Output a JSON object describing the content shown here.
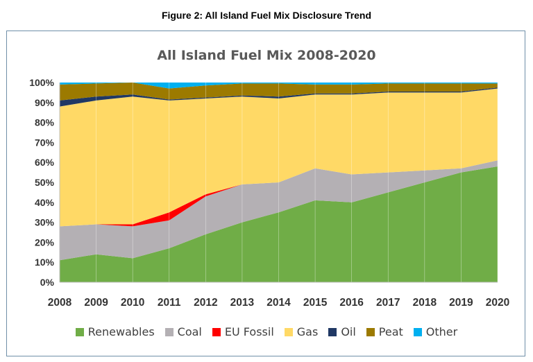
{
  "figure_caption": "Figure 2: All Island Fuel Mix Disclosure Trend",
  "chart_data": {
    "type": "area",
    "stacked": true,
    "title": "All Island Fuel Mix 2008-2020",
    "xlabel": "",
    "ylabel": "",
    "ylim": [
      0,
      100
    ],
    "yticks": [
      "0%",
      "10%",
      "20%",
      "30%",
      "40%",
      "50%",
      "60%",
      "70%",
      "80%",
      "90%",
      "100%"
    ],
    "x": [
      "2008",
      "2009",
      "2010",
      "2011",
      "2012",
      "2013",
      "2014",
      "2015",
      "2016",
      "2017",
      "2018",
      "2019",
      "2020"
    ],
    "legend_position": "bottom",
    "grid": false,
    "series": [
      {
        "name": "Renewables",
        "color": "#70ad47",
        "values": [
          11,
          14,
          12,
          17,
          24,
          30,
          35,
          41,
          40,
          45,
          50,
          55,
          58
        ]
      },
      {
        "name": "Coal",
        "color": "#b4b0b4",
        "values": [
          17,
          15,
          16,
          14,
          19,
          19,
          15,
          16,
          14,
          10,
          6,
          2,
          3
        ]
      },
      {
        "name": "EU Fossil",
        "color": "#ff0000",
        "values": [
          0,
          0,
          1,
          4,
          1,
          0,
          0,
          0,
          0,
          0,
          0,
          0,
          0
        ]
      },
      {
        "name": "Gas",
        "color": "#ffd966",
        "values": [
          60,
          62,
          64,
          56,
          48,
          44,
          42,
          37,
          40,
          40,
          39,
          38,
          36
        ]
      },
      {
        "name": "Oil",
        "color": "#203864",
        "values": [
          3,
          2,
          1,
          0.5,
          0.5,
          0.5,
          1,
          0.5,
          0.5,
          0.5,
          0.5,
          0.5,
          0.5
        ]
      },
      {
        "name": "Peat",
        "color": "#9c7a00",
        "values": [
          8,
          6.5,
          6,
          5.5,
          6,
          6,
          6.5,
          4.5,
          4.5,
          4,
          4,
          4,
          2
        ]
      },
      {
        "name": "Other",
        "color": "#00b0f0",
        "values": [
          1,
          0.5,
          0,
          3,
          1.5,
          0.5,
          0.5,
          1,
          1,
          0.5,
          0.5,
          0.5,
          0.5
        ]
      }
    ]
  }
}
